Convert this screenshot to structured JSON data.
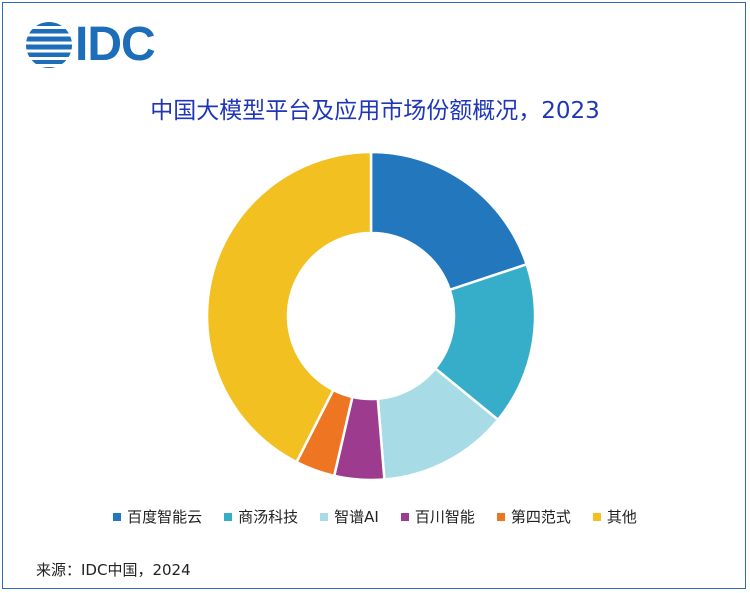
{
  "logo": {
    "text": "IDC"
  },
  "chart_data": {
    "type": "pie",
    "title": "中国大模型平台及应用市场份额概况，2023",
    "series": [
      {
        "name": "百度智能云",
        "value": 19.9,
        "color": "#2277bd"
      },
      {
        "name": "商汤科技",
        "value": 16.0,
        "color": "#36adc9"
      },
      {
        "name": "智谱AI",
        "value": 12.8,
        "color": "#a7dce6"
      },
      {
        "name": "百川智能",
        "value": 4.9,
        "color": "#9d3c8e"
      },
      {
        "name": "第四范式",
        "value": 3.9,
        "color": "#ee7623"
      },
      {
        "name": "其他",
        "value": 42.5,
        "color": "#f2c121"
      }
    ],
    "legend_position": "bottom"
  },
  "source": "来源：IDC中国，2024"
}
